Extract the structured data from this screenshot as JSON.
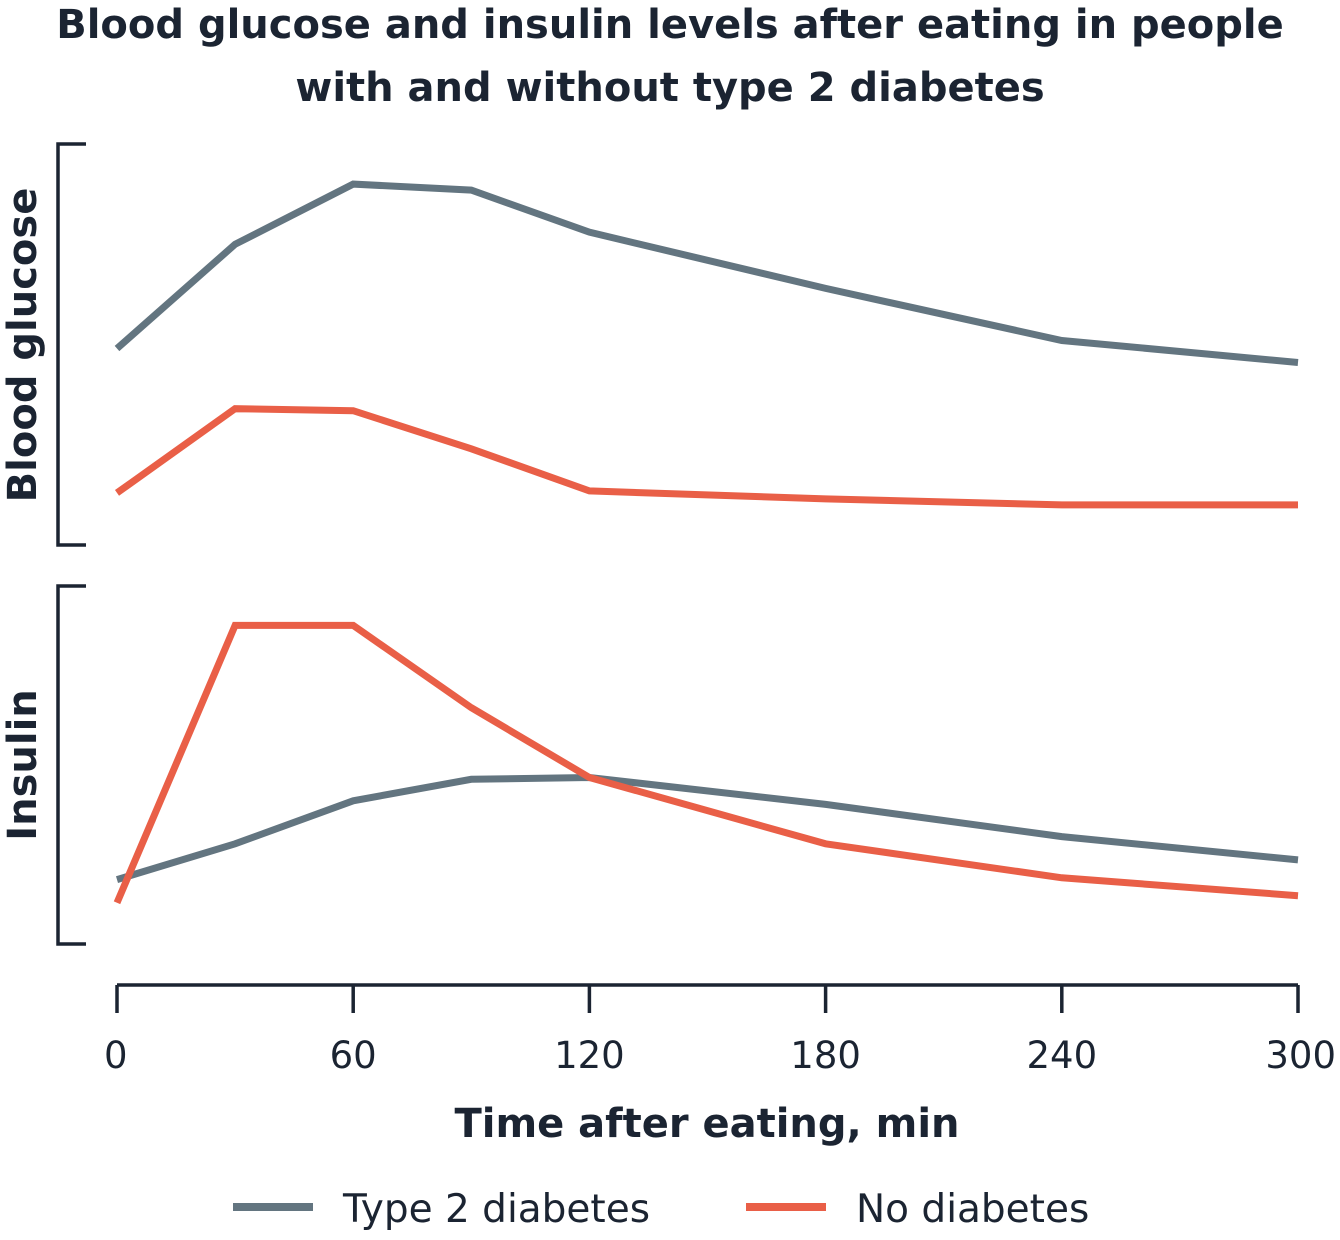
{
  "chart_data": {
    "type": "line",
    "title_lines": [
      "Blood glucose and insulin levels after eating in people",
      "with and without type 2 diabetes"
    ],
    "xlabel": "Time after eating, min",
    "x_ticks": [
      0,
      60,
      120,
      180,
      240,
      300
    ],
    "xlim": [
      0,
      300
    ],
    "grid": false,
    "legend_placement": "bottom-center",
    "colors": {
      "type2": "#637580",
      "none": "#e95f47",
      "text": "#1b2432"
    },
    "legend": [
      {
        "key": "type2",
        "label": "Type 2 diabetes"
      },
      {
        "key": "none",
        "label": "No diabetes"
      }
    ],
    "panels": [
      {
        "ylabel": "Blood glucose",
        "ylim": [
          0,
          100
        ],
        "series": [
          {
            "key": "type2",
            "name": "Type 2 diabetes",
            "x": [
              0,
              30,
              60,
              90,
              120,
              180,
              240,
              300
            ],
            "y": [
              49,
              75,
              90,
              88.5,
              78,
              64,
              51,
              45.5
            ]
          },
          {
            "key": "none",
            "name": "No diabetes",
            "x": [
              0,
              30,
              60,
              90,
              120,
              180,
              240,
              300
            ],
            "y": [
              13,
              34,
              33.5,
              24,
              13.5,
              11.5,
              10,
              10
            ]
          }
        ]
      },
      {
        "ylabel": "Insulin",
        "ylim": [
          0,
          100
        ],
        "series": [
          {
            "key": "type2",
            "name": "Type 2 diabetes",
            "x": [
              0,
              30,
              60,
              90,
              120,
              180,
              240,
              300
            ],
            "y": [
              18,
              28,
              40,
              46,
              46.5,
              39,
              30,
              23.5
            ]
          },
          {
            "key": "none",
            "name": "No diabetes",
            "x": [
              0,
              30,
              60,
              90,
              120,
              180,
              240,
              300
            ],
            "y": [
              11.5,
              89,
              89,
              66,
              46.5,
              28,
              18.5,
              13.5
            ]
          }
        ]
      }
    ]
  }
}
